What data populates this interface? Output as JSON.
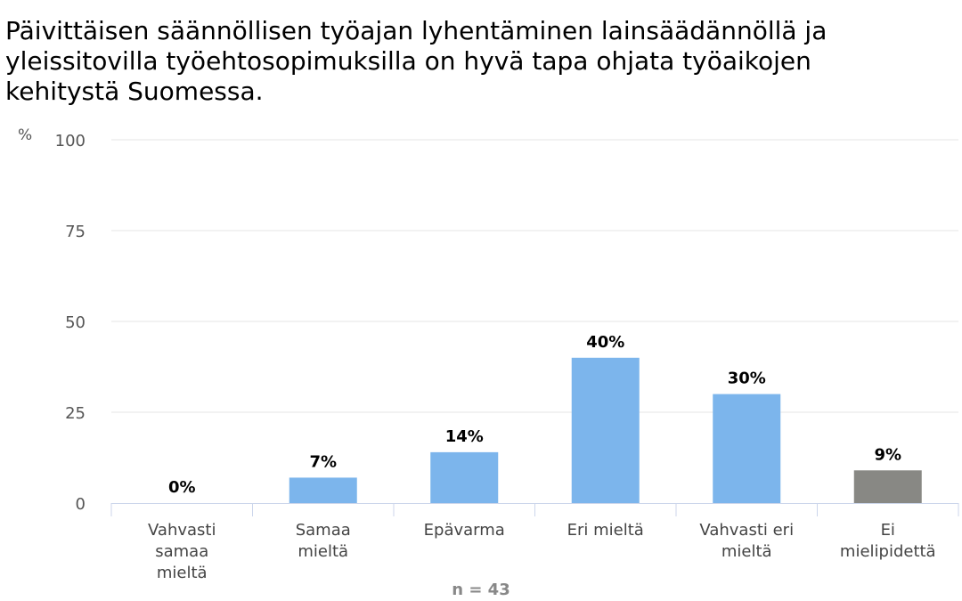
{
  "chart_data": {
    "type": "bar",
    "title": "Päivittäisen säännöllisen työajan lyhentäminen lainsäädännöllä ja yleissitovilla työehtosopimuksilla on hyvä tapa ohjata työaikojen kehitystä Suomessa.",
    "ylabel": "%",
    "xlabel": "",
    "ylim": [
      0,
      100
    ],
    "yticks": [
      0,
      25,
      50,
      75,
      100
    ],
    "categories": [
      "Vahvasti samaa mieltä",
      "Samaa mieltä",
      "Epävarma",
      "Eri mieltä",
      "Vahvasti eri mieltä",
      "Ei mielipidettä"
    ],
    "category_lines": [
      [
        "Vahvasti",
        "samaa",
        "mieltä"
      ],
      [
        "Samaa",
        "mieltä"
      ],
      [
        "Epävarma"
      ],
      [
        "Eri mieltä"
      ],
      [
        "Vahvasti eri",
        "mieltä"
      ],
      [
        "Ei",
        "mielipidettä"
      ]
    ],
    "values": [
      0,
      7,
      14,
      40,
      30,
      9
    ],
    "data_labels": [
      "0%",
      "7%",
      "14%",
      "40%",
      "30%",
      "9%"
    ],
    "colors": [
      "#7cb5ec",
      "#7cb5ec",
      "#7cb5ec",
      "#7cb5ec",
      "#7cb5ec",
      "#888884"
    ],
    "grid": true,
    "footnote": "n = 43"
  }
}
